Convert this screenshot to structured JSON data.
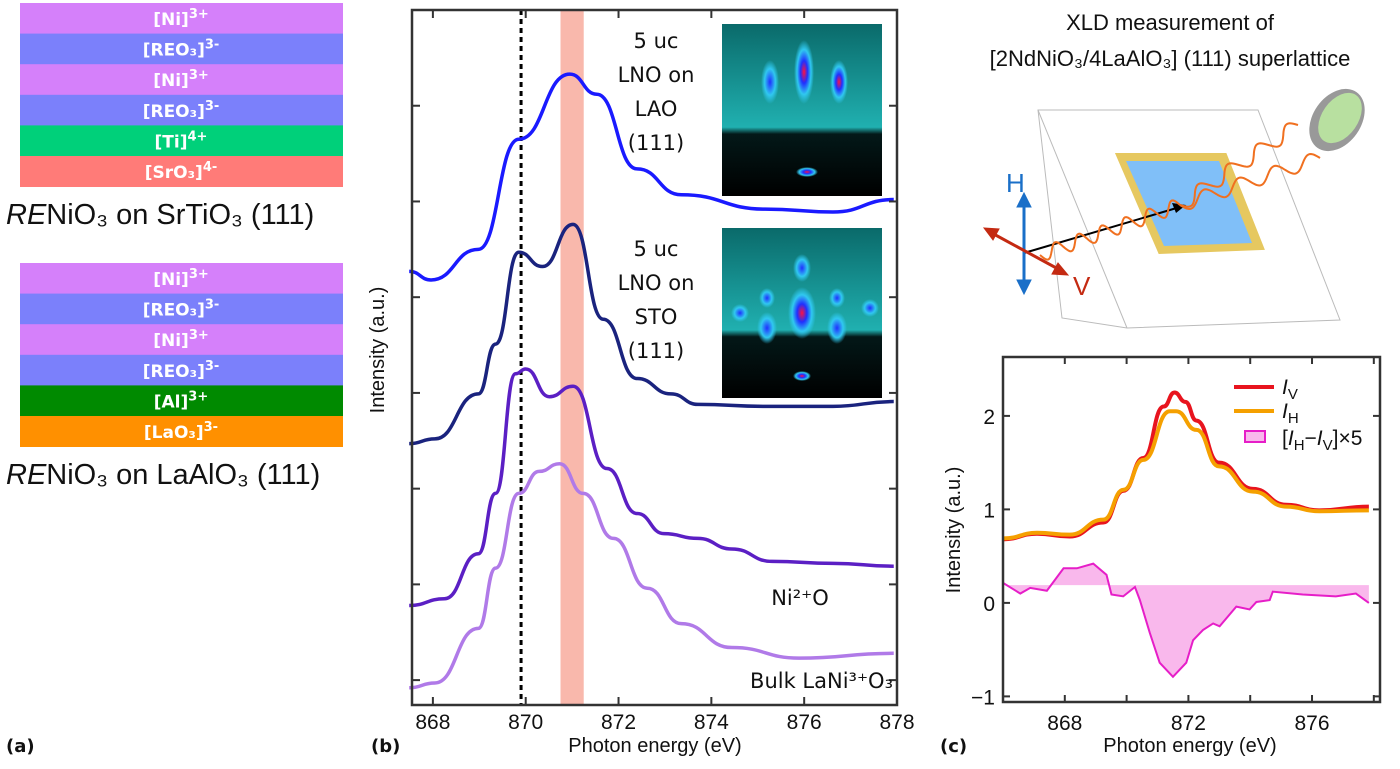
{
  "panel_labels": {
    "a": "(a)",
    "b": "(b)",
    "c": "(c)"
  },
  "panel_a": {
    "stacks": [
      {
        "caption_italic": "RE",
        "caption_rest": "NiO₃ on SrTiO₃ (111)",
        "layers": [
          {
            "label": "[Ni]",
            "sup": "3+",
            "color": "#d580fa"
          },
          {
            "label": "[REO₃]",
            "sup": "3-",
            "color": "#7b80fb"
          },
          {
            "label": "[Ni]",
            "sup": "3+",
            "color": "#d580fa"
          },
          {
            "label": "[REO₃]",
            "sup": "3-",
            "color": "#7b80fb"
          },
          {
            "label": "[Ti]",
            "sup": "4+",
            "color": "#00d07a"
          },
          {
            "label": "[SrO₃]",
            "sup": "4-",
            "color": "#ff7b78"
          }
        ]
      },
      {
        "caption_italic": "RE",
        "caption_rest": "NiO₃ on LaAlO₃ (111)",
        "layers": [
          {
            "label": "[Ni]",
            "sup": "3+",
            "color": "#d580fa"
          },
          {
            "label": "[REO₃]",
            "sup": "3-",
            "color": "#7b80fb"
          },
          {
            "label": "[Ni]",
            "sup": "3+",
            "color": "#d580fa"
          },
          {
            "label": "[REO₃]",
            "sup": "3-",
            "color": "#7b80fb"
          },
          {
            "label": "[Al]",
            "sup": "3+",
            "color": "#008a00"
          },
          {
            "label": "[LaO₃]",
            "sup": "3-",
            "color": "#ff9000"
          }
        ]
      }
    ]
  },
  "panel_c_schematic": {
    "title_line1": "XLD measurement of",
    "title_line2": "[2NdNiO₃/4LaAlO₃] (111) superlattice",
    "h_label": "H",
    "v_label": "V",
    "colors": {
      "H": "#1a6fc8",
      "V": "#c42a12",
      "beam": "#f07020",
      "sample": "#80bff8",
      "sample_frame": "#e6c860",
      "detector": "#b8e0a0"
    }
  },
  "chart_data": [
    {
      "type": "line",
      "panel": "b",
      "xlabel": "Photon energy (eV)",
      "ylabel": "Intensity (a.u.)",
      "xlim": [
        867.55,
        878
      ],
      "ylim": [
        -0.26,
        7.0
      ],
      "xticks": [
        868,
        870,
        872,
        874,
        876,
        878
      ],
      "yticks_unlabeled": [
        0,
        1,
        2,
        3,
        4,
        5,
        6
      ],
      "grid": false,
      "vertical_dashed_line": 869.9,
      "shaded_band": {
        "from": 870.75,
        "to": 871.25,
        "color": "#f9b8ac"
      },
      "annotations": [
        {
          "lines": [
            "5 uc",
            "LNO on",
            "LAO",
            "(111)"
          ]
        },
        {
          "lines": [
            "5 uc",
            "LNO on",
            "STO",
            "(111)"
          ]
        }
      ],
      "series": [
        {
          "name": "5 uc LNO on LAO (111)",
          "color": "#1a1aff",
          "x": [
            867.49,
            867.96,
            868.98,
            869.85,
            870.95,
            871.53,
            872.4,
            873.35,
            875.16,
            876.62,
            877.93
          ],
          "y": [
            4.27,
            4.18,
            4.5,
            5.65,
            6.33,
            6.12,
            5.34,
            5.07,
            4.92,
            4.89,
            5.02
          ]
        },
        {
          "name": "5 uc LNO on STO (111)",
          "color": "#1a237e",
          "x": [
            867.49,
            868.04,
            868.98,
            869.35,
            869.85,
            870.36,
            871.02,
            871.67,
            872.4,
            873.13,
            873.71,
            875.16,
            876.62,
            877.93
          ],
          "y": [
            2.47,
            2.52,
            2.99,
            3.51,
            4.47,
            4.32,
            4.76,
            3.77,
            3.15,
            2.99,
            2.88,
            2.86,
            2.86,
            2.91
          ]
        },
        {
          "name": "Ni²⁺O",
          "color": "#5b1fc4",
          "x": [
            867.49,
            868.25,
            868.98,
            869.35,
            869.78,
            870.0,
            870.51,
            871.02,
            871.75,
            872.4,
            872.98,
            873.71,
            874.44,
            875.31,
            876.62,
            877.93
          ],
          "y": [
            0.78,
            0.85,
            1.32,
            1.95,
            3.2,
            3.25,
            2.96,
            3.07,
            2.21,
            1.74,
            1.53,
            1.48,
            1.37,
            1.24,
            1.22,
            1.19
          ]
        },
        {
          "name": "Bulk LaNi³⁺O₃",
          "color": "#b07ae8",
          "x": [
            867.49,
            868.04,
            868.98,
            869.35,
            869.85,
            870.29,
            870.73,
            871.24,
            871.89,
            872.62,
            873.35,
            874.44,
            875.89,
            877.93
          ],
          "y": [
            -0.08,
            -0.03,
            0.54,
            1.17,
            1.95,
            2.18,
            2.26,
            1.95,
            1.48,
            0.96,
            0.59,
            0.34,
            0.23,
            0.28
          ]
        }
      ]
    },
    {
      "type": "line",
      "panel": "c",
      "xlabel": "Photon energy (eV)",
      "ylabel": "Intensity (a.u.)",
      "xlim": [
        866,
        878.2
      ],
      "ylim": [
        -1.06,
        2.63
      ],
      "xticks": [
        866,
        868,
        870,
        872,
        874,
        876,
        878
      ],
      "xticklabels": [
        "",
        "868",
        "",
        "872",
        "",
        "876",
        ""
      ],
      "yticks": [
        -1,
        0,
        1,
        2
      ],
      "yticklabels": [
        "−1",
        "0",
        "1",
        "2"
      ],
      "grid": false,
      "legend": "top-right",
      "legend_entries": [
        {
          "main": "I",
          "sub": "V"
        },
        {
          "main": "I",
          "sub": "H"
        },
        {
          "text_pre": "[",
          "main1": "I",
          "sub1": "H",
          "mid": "−",
          "main2": "I",
          "sub2": "V",
          "post": "]×5"
        }
      ],
      "diff_fill_baseline": 0.19,
      "series": [
        {
          "name": "IV",
          "color": "#e8141e",
          "x": [
            866.0,
            867.1,
            868.16,
            869.25,
            869.9,
            870.54,
            871.2,
            871.55,
            871.9,
            872.26,
            872.99,
            874.09,
            875.16,
            876.23,
            877.84
          ],
          "y": [
            0.68,
            0.74,
            0.71,
            0.86,
            1.2,
            1.55,
            2.1,
            2.25,
            2.15,
            1.95,
            1.5,
            1.22,
            1.05,
            0.99,
            1.03
          ]
        },
        {
          "name": "IH",
          "color": "#f5a000",
          "x": [
            866.02,
            867.1,
            868.16,
            869.25,
            869.9,
            870.54,
            871.4,
            871.6,
            872.26,
            872.99,
            874.09,
            875.16,
            876.23,
            877.84
          ],
          "y": [
            0.69,
            0.75,
            0.73,
            0.89,
            1.21,
            1.53,
            2.05,
            2.05,
            1.85,
            1.46,
            1.19,
            1.03,
            0.98,
            0.99
          ]
        },
        {
          "name": "[IH−IV]×5",
          "color": "#e61ec8",
          "fill": "#f9b8ec",
          "x": [
            866.02,
            866.56,
            866.88,
            867.42,
            867.96,
            868.39,
            868.92,
            869.35,
            869.51,
            869.89,
            870.27,
            870.43,
            870.75,
            871.07,
            871.5,
            871.93,
            872.15,
            872.47,
            872.8,
            873.01,
            873.55,
            873.98,
            874.2,
            874.63,
            874.73,
            875.7,
            876.77,
            877.42,
            877.84
          ],
          "y": [
            0.21,
            0.1,
            0.16,
            0.13,
            0.37,
            0.37,
            0.42,
            0.3,
            0.09,
            0.07,
            0.17,
            0.03,
            -0.32,
            -0.64,
            -0.79,
            -0.64,
            -0.4,
            -0.29,
            -0.22,
            -0.25,
            -0.04,
            -0.07,
            0.01,
            0.03,
            0.12,
            0.09,
            0.07,
            0.1,
            0.0
          ]
        }
      ]
    }
  ]
}
